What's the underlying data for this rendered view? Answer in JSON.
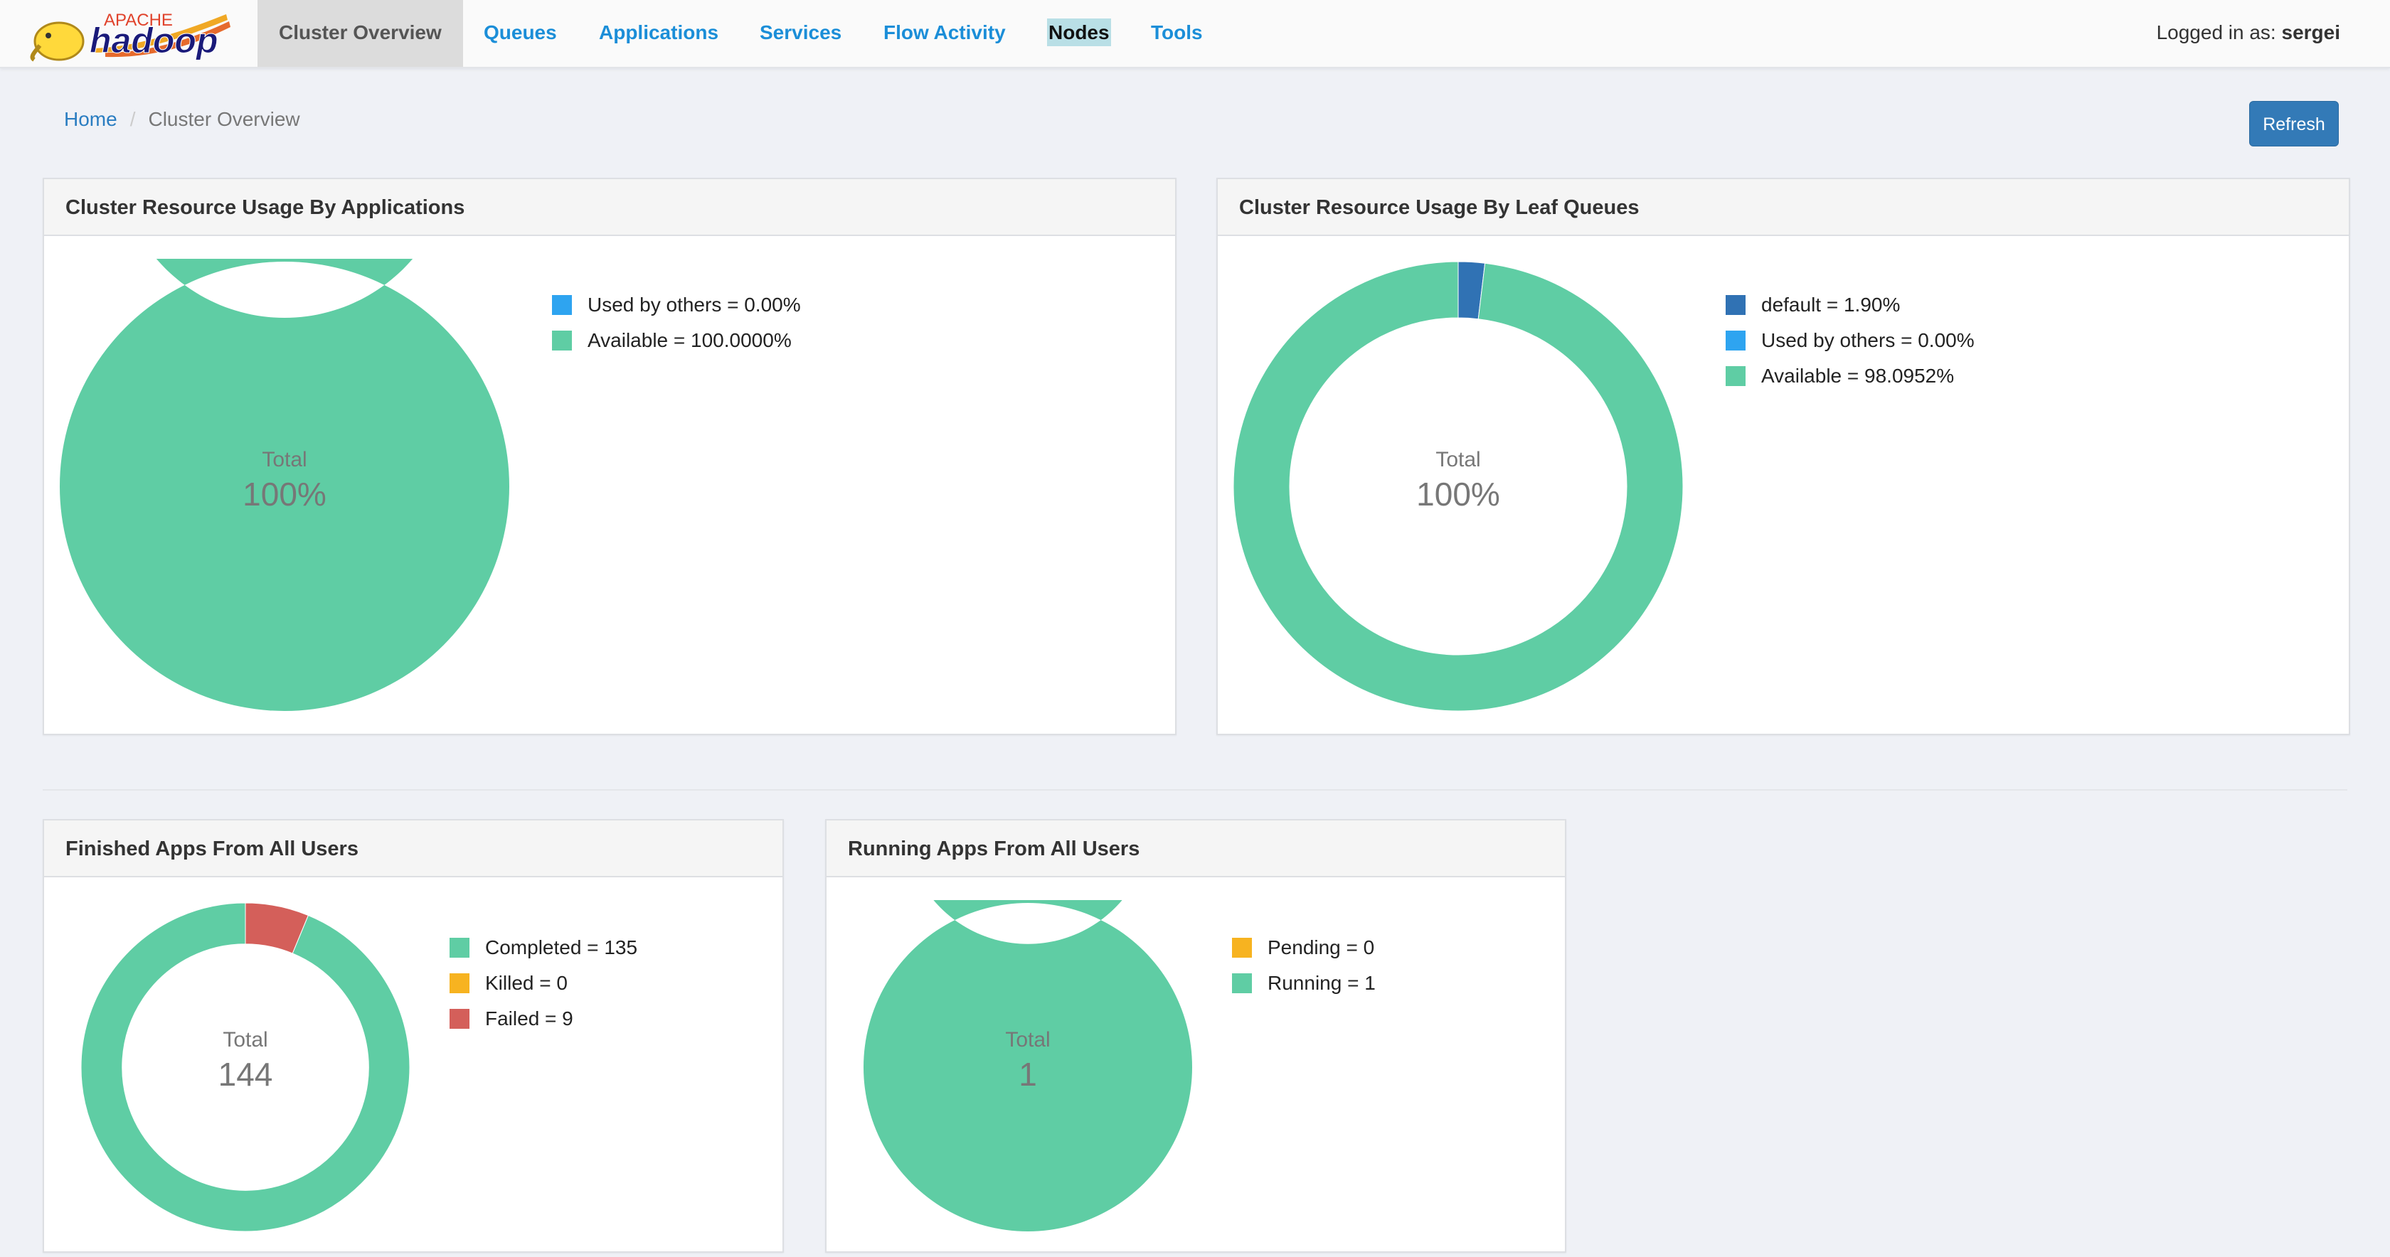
{
  "app": {
    "logo_top": "APACHE",
    "logo_main": "hadoop",
    "user_prefix": "Logged in as:",
    "user_name": "sergei"
  },
  "nav": {
    "tabs": [
      {
        "label": "Cluster Overview"
      },
      {
        "label": "Queues"
      },
      {
        "label": "Applications"
      },
      {
        "label": "Services"
      },
      {
        "label": "Flow Activity"
      },
      {
        "label": "Nodes"
      },
      {
        "label": "Tools"
      }
    ]
  },
  "breadcrumb": {
    "home": "Home",
    "separator": "/",
    "current": "Cluster Overview"
  },
  "refresh_label": "Refresh",
  "colors": {
    "available": "#5fcda4",
    "used_by_others": "#2ea4f0",
    "default_queue": "#3072b4",
    "killed": "#f7b320",
    "failed": "#d45f5a",
    "accent": "#337ab7"
  },
  "panels": {
    "apps_usage": {
      "title": "Cluster Resource Usage By Applications",
      "center_label": "Total",
      "center_value": "100%",
      "legend": [
        {
          "label": "Used by others = 0.00%",
          "color": "#2ea4f0"
        },
        {
          "label": "Available = 100.0000%",
          "color": "#5fcda4"
        }
      ]
    },
    "queue_usage": {
      "title": "Cluster Resource Usage By Leaf Queues",
      "center_label": "Total",
      "center_value": "100%",
      "legend": [
        {
          "label": "default = 1.90%",
          "color": "#3072b4"
        },
        {
          "label": "Used by others = 0.00%",
          "color": "#2ea4f0"
        },
        {
          "label": "Available = 98.0952%",
          "color": "#5fcda4"
        }
      ]
    },
    "finished_apps": {
      "title": "Finished Apps From All Users",
      "center_label": "Total",
      "center_value": "144",
      "legend": [
        {
          "label": "Completed = 135",
          "color": "#5fcda4"
        },
        {
          "label": "Killed = 0",
          "color": "#f7b320"
        },
        {
          "label": "Failed = 9",
          "color": "#d45f5a"
        }
      ]
    },
    "running_apps": {
      "title": "Running Apps From All Users",
      "center_label": "Total",
      "center_value": "1",
      "legend": [
        {
          "label": "Pending = 0",
          "color": "#f7b320"
        },
        {
          "label": "Running = 1",
          "color": "#5fcda4"
        }
      ]
    }
  },
  "chart_data": [
    {
      "type": "pie",
      "title": "Cluster Resource Usage By Applications",
      "categories": [
        "Used by others",
        "Available"
      ],
      "values": [
        0.0,
        100.0
      ]
    },
    {
      "type": "pie",
      "title": "Cluster Resource Usage By Leaf Queues",
      "categories": [
        "default",
        "Used by others",
        "Available"
      ],
      "values": [
        1.9,
        0.0,
        98.0952
      ]
    },
    {
      "type": "pie",
      "title": "Finished Apps From All Users",
      "categories": [
        "Completed",
        "Killed",
        "Failed"
      ],
      "values": [
        135,
        0,
        9
      ]
    },
    {
      "type": "pie",
      "title": "Running Apps From All Users",
      "categories": [
        "Pending",
        "Running"
      ],
      "values": [
        0,
        1
      ]
    }
  ]
}
